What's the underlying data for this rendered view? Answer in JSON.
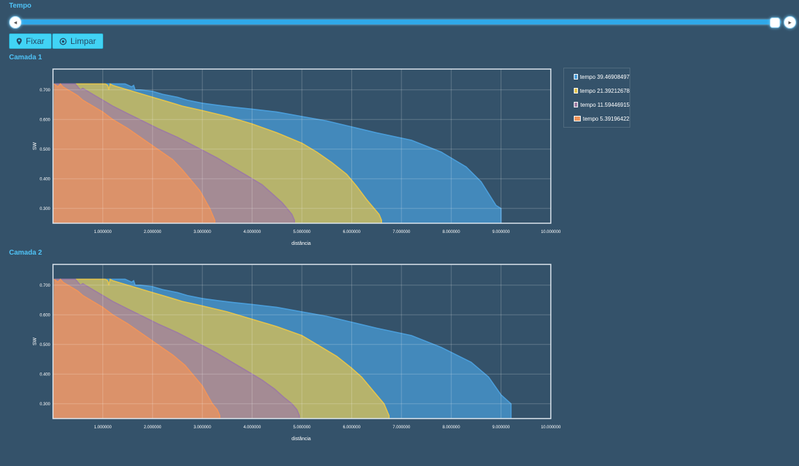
{
  "header": {
    "title": "Tempo"
  },
  "slider": {
    "value_fraction": 1.0
  },
  "buttons": {
    "fixar": "Fixar",
    "limpar": "Limpar"
  },
  "colors": {
    "background": "#34526a",
    "accent": "#2fa9ea",
    "button": "#41d3f5"
  },
  "chart_data": [
    {
      "type": "area",
      "title": "Camada 1",
      "xlabel": "distância",
      "ylabel": "SW",
      "xlim": [
        0.0,
        10.0
      ],
      "ylim": [
        0.25,
        0.77
      ],
      "x_tick_labels": [
        "1.000000",
        "2.000000",
        "3.000000",
        "4.000000",
        "5.000000",
        "6.000000",
        "7.000000",
        "8.000000",
        "9.000000",
        "10.000000"
      ],
      "y_tick_labels": [
        "0.300",
        "0.400",
        "0.500",
        "0.600",
        "0.700"
      ],
      "x_ticks": [
        1,
        2,
        3,
        4,
        5,
        6,
        7,
        8,
        9,
        10
      ],
      "y_ticks": [
        0.3,
        0.4,
        0.5,
        0.6,
        0.7
      ],
      "grid": true,
      "legend": "right",
      "series": [
        {
          "name": "tempo 39.46908497",
          "color": "#4a9edb",
          "x": [
            0.02,
            1.45,
            1.58,
            1.62,
            1.65,
            1.75,
            2.0,
            2.1,
            2.2,
            2.5,
            2.7,
            3.0,
            3.3,
            3.6,
            4.0,
            4.5,
            5.0,
            5.5,
            6.0,
            6.5,
            7.2,
            7.8,
            8.3,
            8.6,
            8.9,
            9.0,
            9.0
          ],
          "y": [
            0.72,
            0.72,
            0.71,
            0.715,
            0.7,
            0.7,
            0.695,
            0.69,
            0.685,
            0.675,
            0.665,
            0.655,
            0.648,
            0.642,
            0.635,
            0.625,
            0.61,
            0.595,
            0.575,
            0.555,
            0.53,
            0.49,
            0.44,
            0.39,
            0.31,
            0.3,
            0.25
          ]
        },
        {
          "name": "tempo 21.39212678",
          "color": "#e3c44d",
          "x": [
            0.02,
            1.05,
            1.1,
            1.12,
            1.15,
            1.2,
            1.3,
            1.5,
            1.7,
            2.0,
            2.3,
            2.6,
            3.0,
            3.5,
            4.0,
            4.5,
            5.0,
            5.3,
            5.6,
            5.9,
            6.1,
            6.3,
            6.45,
            6.55,
            6.6,
            6.6
          ],
          "y": [
            0.72,
            0.72,
            0.715,
            0.7,
            0.72,
            0.715,
            0.71,
            0.7,
            0.69,
            0.675,
            0.66,
            0.645,
            0.63,
            0.61,
            0.585,
            0.555,
            0.52,
            0.49,
            0.455,
            0.415,
            0.375,
            0.33,
            0.3,
            0.28,
            0.26,
            0.25
          ]
        },
        {
          "name": "tempo 11.59446915",
          "color": "#9d7ba3",
          "x": [
            0.02,
            0.45,
            0.5,
            0.55,
            0.6,
            0.7,
            0.85,
            1.0,
            1.2,
            1.5,
            1.8,
            2.1,
            2.5,
            2.9,
            3.3,
            3.6,
            3.9,
            4.2,
            4.4,
            4.6,
            4.7,
            4.8,
            4.85,
            4.85
          ],
          "y": [
            0.72,
            0.72,
            0.71,
            0.7,
            0.705,
            0.695,
            0.68,
            0.665,
            0.645,
            0.62,
            0.595,
            0.57,
            0.54,
            0.505,
            0.47,
            0.44,
            0.41,
            0.38,
            0.35,
            0.32,
            0.3,
            0.28,
            0.26,
            0.25
          ]
        },
        {
          "name": "tempo 5.39196422",
          "color": "#f0945a",
          "x": [
            0.02,
            0.1,
            0.15,
            0.2,
            0.3,
            0.4,
            0.5,
            0.6,
            0.8,
            1.0,
            1.2,
            1.5,
            1.8,
            2.1,
            2.4,
            2.6,
            2.8,
            2.95,
            3.05,
            3.15,
            3.2,
            3.25,
            3.25
          ],
          "y": [
            0.72,
            0.71,
            0.72,
            0.71,
            0.7,
            0.69,
            0.68,
            0.665,
            0.645,
            0.625,
            0.6,
            0.57,
            0.535,
            0.5,
            0.465,
            0.43,
            0.39,
            0.36,
            0.33,
            0.3,
            0.28,
            0.26,
            0.25
          ]
        }
      ]
    },
    {
      "type": "area",
      "title": "Camada 2",
      "xlabel": "distância",
      "ylabel": "SW",
      "xlim": [
        0.0,
        10.0
      ],
      "ylim": [
        0.25,
        0.77
      ],
      "x_tick_labels": [
        "1.000000",
        "2.000000",
        "3.000000",
        "4.000000",
        "5.000000",
        "6.000000",
        "7.000000",
        "8.000000",
        "9.000000",
        "10.000000"
      ],
      "y_tick_labels": [
        "0.300",
        "0.400",
        "0.500",
        "0.600",
        "0.700"
      ],
      "x_ticks": [
        1,
        2,
        3,
        4,
        5,
        6,
        7,
        8,
        9,
        10
      ],
      "y_ticks": [
        0.3,
        0.4,
        0.5,
        0.6,
        0.7
      ],
      "grid": true,
      "series": [
        {
          "name": "tempo 39.46908497",
          "color": "#4a9edb",
          "x": [
            0.02,
            1.45,
            1.58,
            1.62,
            1.65,
            1.75,
            2.0,
            2.1,
            2.2,
            2.5,
            2.7,
            3.0,
            3.3,
            3.6,
            4.0,
            4.5,
            5.0,
            5.5,
            6.0,
            6.5,
            7.2,
            7.8,
            8.4,
            8.75,
            9.0,
            9.2,
            9.2
          ],
          "y": [
            0.72,
            0.72,
            0.71,
            0.715,
            0.7,
            0.7,
            0.695,
            0.69,
            0.685,
            0.675,
            0.665,
            0.655,
            0.648,
            0.642,
            0.635,
            0.625,
            0.61,
            0.595,
            0.575,
            0.555,
            0.53,
            0.49,
            0.44,
            0.39,
            0.33,
            0.3,
            0.25
          ]
        },
        {
          "name": "tempo 21.39212678",
          "color": "#e3c44d",
          "x": [
            0.02,
            1.05,
            1.1,
            1.12,
            1.15,
            1.2,
            1.3,
            1.5,
            1.7,
            2.0,
            2.3,
            2.6,
            3.0,
            3.5,
            4.0,
            4.5,
            5.0,
            5.4,
            5.7,
            6.0,
            6.2,
            6.45,
            6.65,
            6.75,
            6.75
          ],
          "y": [
            0.72,
            0.72,
            0.715,
            0.7,
            0.72,
            0.715,
            0.71,
            0.7,
            0.69,
            0.675,
            0.66,
            0.645,
            0.63,
            0.61,
            0.585,
            0.56,
            0.53,
            0.49,
            0.46,
            0.42,
            0.39,
            0.34,
            0.3,
            0.26,
            0.25
          ]
        },
        {
          "name": "tempo 11.59446915",
          "color": "#9d7ba3",
          "x": [
            0.02,
            0.45,
            0.5,
            0.55,
            0.6,
            0.7,
            0.85,
            1.0,
            1.2,
            1.5,
            1.8,
            2.1,
            2.5,
            2.9,
            3.3,
            3.6,
            3.9,
            4.2,
            4.45,
            4.65,
            4.8,
            4.9,
            4.95,
            4.95
          ],
          "y": [
            0.72,
            0.72,
            0.71,
            0.7,
            0.705,
            0.695,
            0.68,
            0.665,
            0.645,
            0.62,
            0.595,
            0.57,
            0.54,
            0.505,
            0.47,
            0.44,
            0.41,
            0.38,
            0.35,
            0.32,
            0.3,
            0.28,
            0.26,
            0.25
          ]
        },
        {
          "name": "tempo 5.39196422",
          "color": "#f0945a",
          "x": [
            0.02,
            0.1,
            0.15,
            0.2,
            0.3,
            0.4,
            0.5,
            0.6,
            0.8,
            1.0,
            1.2,
            1.5,
            1.8,
            2.1,
            2.4,
            2.65,
            2.85,
            3.0,
            3.1,
            3.2,
            3.3,
            3.35,
            3.35
          ],
          "y": [
            0.72,
            0.71,
            0.72,
            0.71,
            0.7,
            0.69,
            0.68,
            0.665,
            0.645,
            0.625,
            0.6,
            0.57,
            0.535,
            0.5,
            0.465,
            0.43,
            0.39,
            0.36,
            0.33,
            0.3,
            0.28,
            0.26,
            0.25
          ]
        }
      ]
    }
  ]
}
